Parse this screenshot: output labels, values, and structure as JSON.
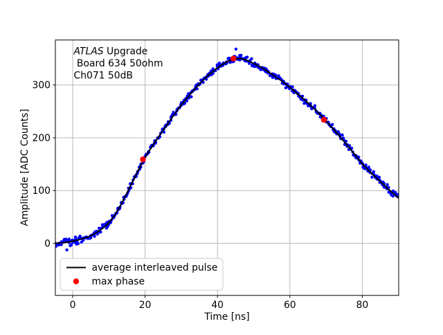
{
  "figure": {
    "background": "#ffffff"
  },
  "chart_data": {
    "type": "scatter",
    "title": "",
    "xlabel": "Time [ns]",
    "ylabel": "Amplitude [ADC Counts]",
    "xlim": [
      -4.78,
      90.06
    ],
    "ylim": [
      -98.6,
      385.2
    ],
    "xticks": [
      0,
      20,
      40,
      60,
      80
    ],
    "yticks": [
      0,
      100,
      200,
      300
    ],
    "grid": true,
    "legend_position": "lower left",
    "colors": {
      "scatter": "#0000ff",
      "average_line": "#000000",
      "max_phase": "#ff0000",
      "grid": "#b0b0b0",
      "frame": "#000000",
      "legend_border": "#cccccc"
    },
    "annotation_lines": [
      {
        "italic": "ATLAS",
        "rest": " Upgrade"
      },
      {
        "italic": "",
        "rest": " Board 634 50ohm"
      },
      {
        "italic": "",
        "rest": "Ch071 50dB"
      }
    ],
    "legend": {
      "entries": [
        {
          "marker": "line",
          "color": "#000000",
          "label": "average interleaved pulse"
        },
        {
          "marker": "dot",
          "color": "#ff0000",
          "label": "max phase"
        }
      ]
    },
    "series": [
      {
        "name": "interleaved pulse samples",
        "type": "scatter",
        "color": "#0000ff"
      },
      {
        "name": "average interleaved pulse",
        "type": "line",
        "color": "#000000"
      },
      {
        "name": "max phase",
        "type": "scatter",
        "color": "#ff0000"
      }
    ],
    "average_pulse": {
      "t": [
        -5,
        -2.5,
        0,
        2.5,
        5,
        7.5,
        10,
        12.5,
        15,
        17.5,
        20,
        22.5,
        25,
        27.5,
        30,
        32.5,
        35,
        37.5,
        40,
        42.5,
        45,
        47.5,
        50,
        52.5,
        55,
        57.5,
        60,
        62.5,
        65,
        67.5,
        70,
        72.5,
        75,
        77.5,
        80,
        82.5,
        85,
        87.5,
        90
      ],
      "amp": [
        0,
        1,
        4,
        8,
        14,
        24,
        38,
        62,
        95,
        130,
        163,
        190,
        214,
        239,
        262,
        283,
        302,
        319,
        333,
        344,
        350.5,
        349,
        341,
        332,
        320,
        309,
        296,
        281,
        266,
        250,
        232,
        213,
        193,
        172,
        150,
        133,
        117,
        101,
        86
      ]
    },
    "max_phase_points": {
      "t": [
        19.4,
        44.4,
        69.4
      ],
      "amp": [
        159,
        350,
        234
      ]
    },
    "scatter_band": {
      "t_start": -5,
      "t_end": 90.0,
      "step": 0.4,
      "per_step": 2,
      "noise_counts": 9,
      "seed": 20071,
      "outliers_t": [
        -1.6,
        45.1
      ],
      "outliers_amp": [
        -12.5,
        368
      ]
    }
  }
}
